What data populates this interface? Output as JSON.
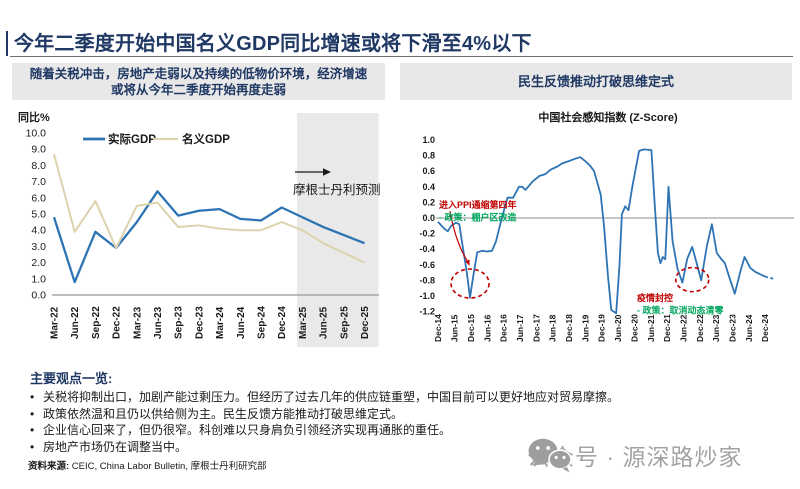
{
  "page": {
    "title": "今年二季度开始中国名义GDP同比增速或将下滑至4%以下",
    "source": {
      "label": "资料来源:",
      "text": " CEIC, China Labor Bulletin, 摩根士丹利研究部"
    },
    "watermark": {
      "icon": "wechat-icon",
      "text": "公众号 · 源深路炒家"
    }
  },
  "panels": {
    "left_header_line1": "随着关税冲击，房地产走弱以及持续的低物价环境，经济增速",
    "left_header_line2": "或将从今年二季度开始再度走弱",
    "right_header": "民生反馈推动打破思维定式"
  },
  "key_points": {
    "heading": "主要观点一览:",
    "bullet_char": "•",
    "bullets": [
      "关税将抑制出口，加剧产能过剩压力。但经历了过去几年的供应链重塑，中国目前可以更好地应对贸易摩擦。",
      "政策依然温和且仍以供给侧为主。民生反馈方能推动打破思维定式。",
      "企业信心回来了，但仍很窄。科创难以只身肩负引领经济实现再通胀的重任。",
      "房地产市场仍在调整当中。"
    ]
  },
  "colors": {
    "navy": "#1f3864",
    "real_gdp_blue": "#2e74b5",
    "nominal_gdp_tan": "#dcd3ae",
    "band_gray": "#e9e9e9",
    "annotation_red": "#c00000",
    "annotation_green": "#00a65e",
    "header_bg": "#e8e8e8",
    "watermark_gray": "#a3a3a3"
  },
  "chart_data": [
    {
      "type": "line",
      "title": "",
      "ylabel": "同比%",
      "categories": [
        "Mar-22",
        "Jun-22",
        "Sep-22",
        "Dec-22",
        "Mar-23",
        "Jun-23",
        "Sep-23",
        "Dec-23",
        "Mar-24",
        "Jun-24",
        "Sep-24",
        "Dec-24",
        "Mar-25",
        "Jun-25",
        "Sep-25",
        "Dec-25"
      ],
      "yticks": [
        10.0,
        9.0,
        8.0,
        7.0,
        6.0,
        5.0,
        4.0,
        3.0,
        2.0,
        1.0,
        0.0
      ],
      "ylim": [
        0,
        10
      ],
      "grid": false,
      "legend_position": "top",
      "series": [
        {
          "name": "实际GDP",
          "color": "#2e74b5",
          "values": [
            4.8,
            0.8,
            3.9,
            2.9,
            4.5,
            6.4,
            4.9,
            5.2,
            5.3,
            4.7,
            4.6,
            5.4,
            4.8,
            4.2,
            3.7,
            3.2
          ]
        },
        {
          "name": "名义GDP",
          "color": "#dcd3ae",
          "values": [
            8.7,
            3.9,
            5.8,
            2.9,
            5.5,
            5.7,
            4.2,
            4.3,
            4.1,
            4.0,
            4.0,
            4.5,
            4.0,
            3.2,
            2.6,
            2.0
          ]
        }
      ],
      "forecast_band": {
        "start_category": "Mar-25",
        "label": "摩根士丹利预测",
        "color": "#e9e9e9"
      }
    },
    {
      "type": "line",
      "title": "中国社会感知指数 (Z-Score)",
      "x_unit": "half-year index, 0 = Dec-14",
      "x_ticks": [
        "Dec-14",
        "Jun-15",
        "Dec-15",
        "Jun-16",
        "Dec-16",
        "Jun-17",
        "Dec-17",
        "Jun-18",
        "Dec-18",
        "Jun-19",
        "Dec-19",
        "Jun-20",
        "Dec-20",
        "Jun-21",
        "Dec-21",
        "Jun-22",
        "Dec-22",
        "Jun-23",
        "Dec-23",
        "Jun-24",
        "Dec-24"
      ],
      "yticks": [
        1.0,
        0.8,
        0.6,
        0.4,
        0.2,
        0.0,
        -0.2,
        -0.4,
        -0.6,
        -0.8,
        -1.0,
        -1.2
      ],
      "ylim": [
        -1.2,
        1.0
      ],
      "grid": false,
      "series": [
        {
          "name": "中国社会感知指数",
          "color": "#2e74b5",
          "points": [
            [
              0,
              -0.05
            ],
            [
              0.4,
              -0.14
            ],
            [
              0.6,
              -0.17
            ],
            [
              0.8,
              -0.1
            ],
            [
              1.1,
              -0.06
            ],
            [
              1.3,
              -0.08
            ],
            [
              1.5,
              -0.35
            ],
            [
              1.75,
              -0.68
            ],
            [
              1.96,
              -1.02
            ],
            [
              2.15,
              -0.75
            ],
            [
              2.4,
              -0.44
            ],
            [
              2.7,
              -0.42
            ],
            [
              3.0,
              -0.43
            ],
            [
              3.3,
              -0.42
            ],
            [
              3.55,
              -0.3
            ],
            [
              3.9,
              0.0
            ],
            [
              4.25,
              0.26
            ],
            [
              4.6,
              0.26
            ],
            [
              4.95,
              0.4
            ],
            [
              5.15,
              0.4
            ],
            [
              5.35,
              0.36
            ],
            [
              5.8,
              0.47
            ],
            [
              6.2,
              0.54
            ],
            [
              6.55,
              0.56
            ],
            [
              6.9,
              0.62
            ],
            [
              7.3,
              0.66
            ],
            [
              7.6,
              0.7
            ],
            [
              8.0,
              0.73
            ],
            [
              8.4,
              0.76
            ],
            [
              8.7,
              0.78
            ],
            [
              9.0,
              0.73
            ],
            [
              9.3,
              0.67
            ],
            [
              9.55,
              0.6
            ],
            [
              9.75,
              0.45
            ],
            [
              9.95,
              0.3
            ],
            [
              10.15,
              -0.1
            ],
            [
              10.4,
              -0.75
            ],
            [
              10.6,
              -1.18
            ],
            [
              10.9,
              -1.22
            ],
            [
              11.1,
              -0.6
            ],
            [
              11.25,
              0.05
            ],
            [
              11.45,
              0.15
            ],
            [
              11.65,
              0.1
            ],
            [
              11.9,
              0.42
            ],
            [
              12.3,
              0.86
            ],
            [
              12.6,
              0.88
            ],
            [
              13.05,
              0.87
            ],
            [
              13.25,
              0.2
            ],
            [
              13.45,
              -0.45
            ],
            [
              13.6,
              -0.58
            ],
            [
              13.75,
              -0.5
            ],
            [
              13.9,
              -0.53
            ],
            [
              14.1,
              0.4
            ],
            [
              14.35,
              -0.3
            ],
            [
              14.65,
              -0.65
            ],
            [
              14.95,
              -0.83
            ],
            [
              15.25,
              -0.52
            ],
            [
              15.55,
              -0.37
            ],
            [
              15.85,
              -0.6
            ],
            [
              16.1,
              -0.8
            ],
            [
              16.45,
              -0.35
            ],
            [
              16.75,
              -0.08
            ],
            [
              17.05,
              -0.45
            ],
            [
              17.3,
              -0.52
            ],
            [
              17.55,
              -0.58
            ],
            [
              17.85,
              -0.78
            ],
            [
              18.15,
              -0.97
            ],
            [
              18.5,
              -0.68
            ],
            [
              18.75,
              -0.5
            ],
            [
              19.1,
              -0.64
            ],
            [
              19.4,
              -0.69
            ],
            [
              19.7,
              -0.72
            ],
            [
              20.0,
              -0.75
            ],
            [
              20.3,
              -0.77
            ],
            [
              20.6,
              -0.78
            ]
          ]
        }
      ],
      "dashed_tail_from_t": 20.0,
      "annotations": [
        {
          "red": "进入PPI通缩第四年",
          "green": "- 政策：棚户区改造"
        },
        {
          "red": "疫情封控",
          "green": "- 政策：取消动态清零"
        }
      ],
      "highlight_circles": [
        {
          "t": 1.96,
          "v": -0.84
        },
        {
          "t": 15.55,
          "v": -0.79
        }
      ]
    }
  ]
}
